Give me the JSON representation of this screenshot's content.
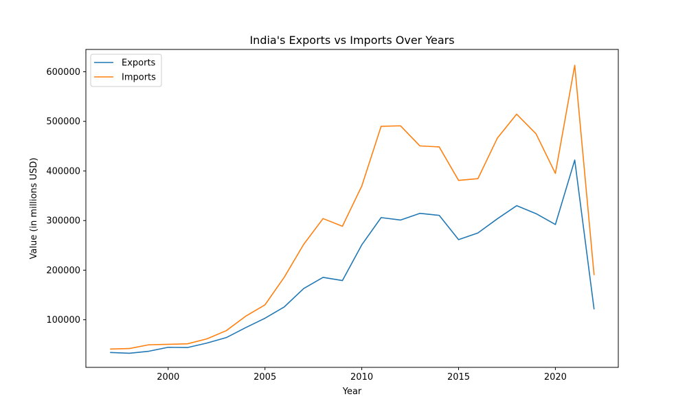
{
  "chart_data": {
    "type": "line",
    "title": "India's Exports vs Imports Over Years",
    "xlabel": "Year",
    "ylabel": "Value (in millions USD)",
    "x": [
      1997,
      1998,
      1999,
      2000,
      2001,
      2002,
      2003,
      2004,
      2005,
      2006,
      2007,
      2008,
      2009,
      2010,
      2011,
      2012,
      2013,
      2014,
      2015,
      2016,
      2017,
      2018,
      2019,
      2020,
      2021,
      2022
    ],
    "xlim": [
      1995.75,
      2023.25
    ],
    "ylim": [
      4000,
      645000
    ],
    "x_ticks": [
      2000,
      2005,
      2010,
      2015,
      2020
    ],
    "y_ticks": [
      100000,
      200000,
      300000,
      400000,
      500000,
      600000
    ],
    "x_tick_labels": [
      "2000",
      "2005",
      "2010",
      "2015",
      "2020"
    ],
    "y_tick_labels": [
      "100000",
      "200000",
      "300000",
      "400000",
      "500000",
      "600000"
    ],
    "grid": false,
    "legend_position": "top-left",
    "series": [
      {
        "name": "Exports",
        "color": "#1f77b4",
        "values": [
          34000,
          32500,
          36500,
          44500,
          44000,
          53000,
          64000,
          84000,
          103000,
          126000,
          163000,
          185500,
          179000,
          251000,
          306000,
          301000,
          314500,
          310500,
          261500,
          275000,
          303500,
          330000,
          314000,
          292000,
          422000,
          121000
        ]
      },
      {
        "name": "Imports",
        "color": "#ff7f0e",
        "values": [
          41000,
          42000,
          49500,
          50500,
          51500,
          61500,
          78000,
          107000,
          130000,
          186000,
          252000,
          304000,
          288500,
          369500,
          490000,
          491000,
          450500,
          448500,
          381000,
          384500,
          466000,
          514500,
          475000,
          395000,
          613000,
          190000
        ]
      }
    ]
  }
}
